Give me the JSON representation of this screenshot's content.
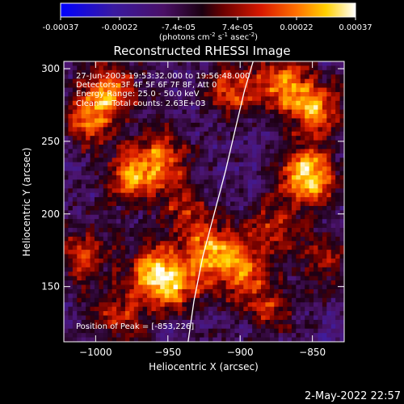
{
  "chart_data": {
    "type": "heatmap",
    "title": "Reconstructed RHESSI Image",
    "xlabel": "Heliocentric X (arcsec)",
    "ylabel": "Heliocentric Y (arcsec)",
    "xlim": [
      -1022,
      -828
    ],
    "ylim": [
      112,
      305
    ],
    "xticks": [
      -1000,
      -950,
      -900,
      -850
    ],
    "yticks": [
      150,
      200,
      250,
      300
    ],
    "colorbar": {
      "ticks": [
        "-0.00037",
        "-0.00022",
        "-7.4e-05",
        "7.4e-05",
        "0.00022",
        "0.00037"
      ],
      "unit_prefix": "(photons cm",
      "unit_exp1": "-2",
      "unit_mid": " s",
      "unit_exp2": "-1",
      "unit_suffix": " asec",
      "unit_exp3": "-2",
      "unit_close": ")",
      "range": [
        -0.00037,
        0.00037
      ]
    },
    "annotations": [
      "27-Jun-2003 19:53:32.000 to 19:56:48.000",
      "Detectors: 3F 4F 5F 6F 7F 8F, Att 0",
      "Energy Range: 25.0 - 50.0 keV",
      "Clean     Total counts: 2.63E+03"
    ],
    "peak_label": "Position of Peak = [-853,226]",
    "peak": {
      "x": -853,
      "y": 226
    },
    "limb_curve": {
      "x": [
        -936,
        -932,
        -926,
        -918,
        -910,
        -903,
        -897,
        -891
      ],
      "y": [
        112,
        140,
        170,
        200,
        230,
        260,
        285,
        305
      ]
    },
    "bright_sources": [
      {
        "x": -853,
        "y": 226,
        "intensity": 1.0
      },
      {
        "x": -848,
        "y": 272,
        "intensity": 0.75
      },
      {
        "x": -870,
        "y": 290,
        "intensity": 0.65
      },
      {
        "x": -990,
        "y": 285,
        "intensity": 0.7
      },
      {
        "x": -1005,
        "y": 265,
        "intensity": 0.55
      },
      {
        "x": -955,
        "y": 240,
        "intensity": 0.6
      },
      {
        "x": -975,
        "y": 225,
        "intensity": 0.65
      },
      {
        "x": -960,
        "y": 160,
        "intensity": 0.7
      },
      {
        "x": -945,
        "y": 150,
        "intensity": 0.6
      },
      {
        "x": -920,
        "y": 175,
        "intensity": 0.7
      },
      {
        "x": -900,
        "y": 160,
        "intensity": 0.6
      },
      {
        "x": -905,
        "y": 285,
        "intensity": 0.55
      },
      {
        "x": -940,
        "y": 205,
        "intensity": 0.45
      },
      {
        "x": -1010,
        "y": 170,
        "intensity": 0.5
      },
      {
        "x": -880,
        "y": 190,
        "intensity": 0.45
      },
      {
        "x": -845,
        "y": 170,
        "intensity": 0.4
      },
      {
        "x": -985,
        "y": 130,
        "intensity": 0.45
      },
      {
        "x": -880,
        "y": 135,
        "intensity": 0.45
      }
    ]
  },
  "footer": {
    "date": "2-May-2022 22:57"
  }
}
